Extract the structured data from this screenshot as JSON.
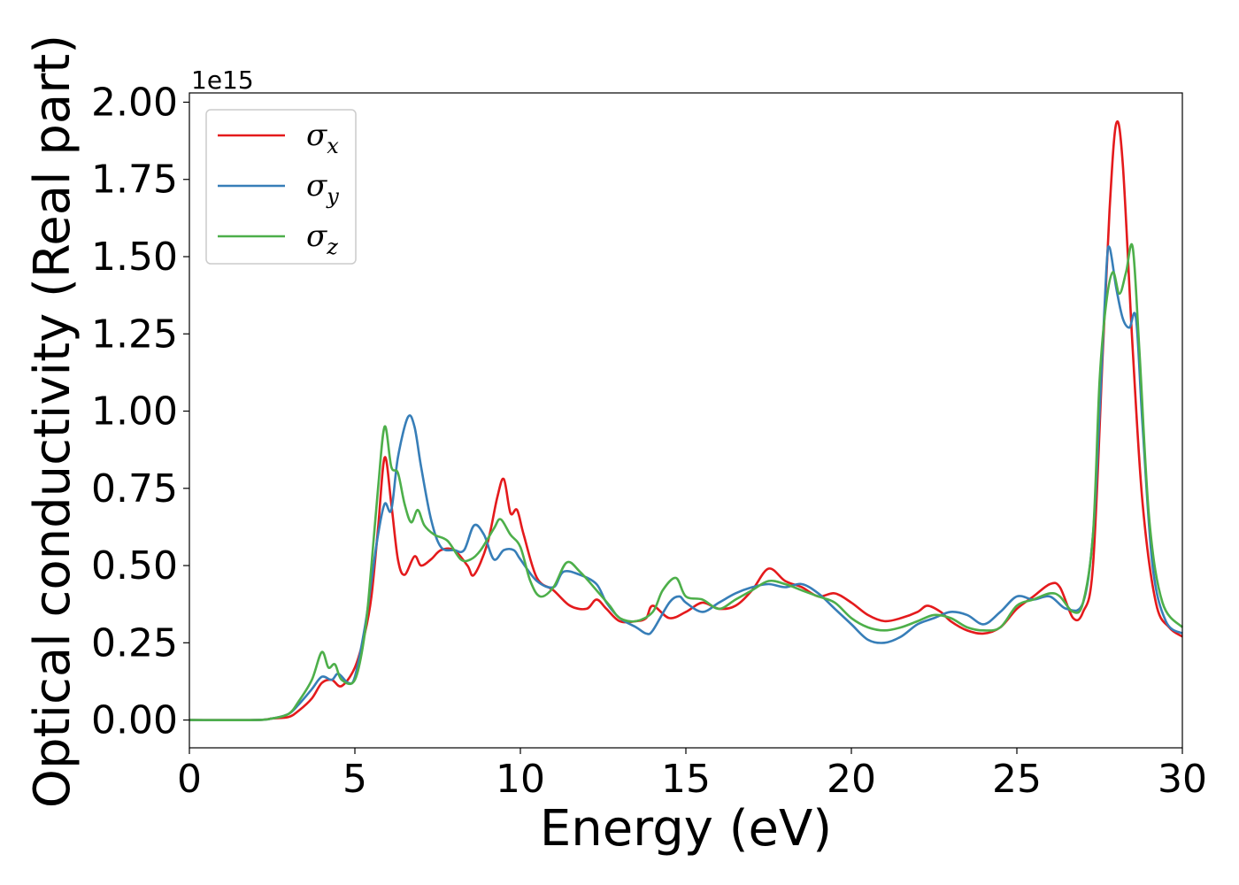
{
  "chart_data": {
    "type": "line",
    "xlabel": "Energy (eV)",
    "ylabel": "Optical conductivity (Real part)",
    "y_offset_label": "1e15",
    "xlim": [
      0,
      30
    ],
    "ylim": [
      -0.09,
      2.03
    ],
    "x_ticks": [
      0,
      5,
      10,
      15,
      20,
      25,
      30
    ],
    "x_tick_labels": [
      "0",
      "5",
      "10",
      "15",
      "20",
      "25",
      "30"
    ],
    "y_ticks": [
      0,
      0.25,
      0.5,
      0.75,
      1.0,
      1.25,
      1.5,
      1.75,
      2.0
    ],
    "y_tick_labels": [
      "0.00",
      "0.25",
      "0.50",
      "0.75",
      "1.00",
      "1.25",
      "1.50",
      "1.75",
      "2.00"
    ],
    "grid": false,
    "legend_position": "top-left",
    "series": [
      {
        "name": "σx",
        "legend_symbol": "σ",
        "legend_subscript": "x",
        "color": "#e41a1c",
        "points": [
          [
            0,
            0
          ],
          [
            2,
            0
          ],
          [
            2.5,
            0.005
          ],
          [
            3,
            0.01
          ],
          [
            3.3,
            0.03
          ],
          [
            3.7,
            0.07
          ],
          [
            4,
            0.12
          ],
          [
            4.3,
            0.13
          ],
          [
            4.6,
            0.11
          ],
          [
            5,
            0.17
          ],
          [
            5.3,
            0.28
          ],
          [
            5.5,
            0.4
          ],
          [
            5.7,
            0.62
          ],
          [
            5.9,
            0.85
          ],
          [
            6.1,
            0.7
          ],
          [
            6.3,
            0.52
          ],
          [
            6.5,
            0.47
          ],
          [
            6.8,
            0.53
          ],
          [
            7.0,
            0.5
          ],
          [
            7.3,
            0.52
          ],
          [
            7.6,
            0.55
          ],
          [
            8.0,
            0.55
          ],
          [
            8.4,
            0.5
          ],
          [
            8.6,
            0.47
          ],
          [
            9.0,
            0.57
          ],
          [
            9.3,
            0.72
          ],
          [
            9.5,
            0.78
          ],
          [
            9.7,
            0.67
          ],
          [
            9.9,
            0.68
          ],
          [
            10.1,
            0.6
          ],
          [
            10.5,
            0.46
          ],
          [
            11,
            0.42
          ],
          [
            11.5,
            0.37
          ],
          [
            12,
            0.36
          ],
          [
            12.3,
            0.39
          ],
          [
            12.6,
            0.36
          ],
          [
            13,
            0.32
          ],
          [
            13.5,
            0.32
          ],
          [
            13.8,
            0.33
          ],
          [
            14,
            0.37
          ],
          [
            14.5,
            0.33
          ],
          [
            15,
            0.35
          ],
          [
            15.5,
            0.38
          ],
          [
            16,
            0.36
          ],
          [
            16.5,
            0.37
          ],
          [
            17,
            0.42
          ],
          [
            17.5,
            0.49
          ],
          [
            18,
            0.45
          ],
          [
            18.5,
            0.43
          ],
          [
            19,
            0.4
          ],
          [
            19.5,
            0.41
          ],
          [
            20,
            0.38
          ],
          [
            20.5,
            0.34
          ],
          [
            21,
            0.32
          ],
          [
            21.5,
            0.33
          ],
          [
            22,
            0.35
          ],
          [
            22.3,
            0.37
          ],
          [
            22.7,
            0.35
          ],
          [
            23,
            0.32
          ],
          [
            23.5,
            0.29
          ],
          [
            24,
            0.28
          ],
          [
            24.5,
            0.3
          ],
          [
            25,
            0.36
          ],
          [
            25.5,
            0.4
          ],
          [
            26,
            0.44
          ],
          [
            26.3,
            0.43
          ],
          [
            26.7,
            0.33
          ],
          [
            27,
            0.35
          ],
          [
            27.3,
            0.5
          ],
          [
            27.6,
            1.2
          ],
          [
            27.8,
            1.65
          ],
          [
            28.0,
            1.93
          ],
          [
            28.2,
            1.8
          ],
          [
            28.5,
            1.2
          ],
          [
            28.8,
            0.7
          ],
          [
            29.2,
            0.38
          ],
          [
            29.6,
            0.3
          ],
          [
            30,
            0.27
          ]
        ]
      },
      {
        "name": "σy",
        "legend_symbol": "σ",
        "legend_subscript": "y",
        "color": "#377eb8",
        "points": [
          [
            0,
            0
          ],
          [
            2,
            0
          ],
          [
            2.5,
            0.005
          ],
          [
            3,
            0.02
          ],
          [
            3.3,
            0.05
          ],
          [
            3.7,
            0.1
          ],
          [
            4,
            0.14
          ],
          [
            4.3,
            0.13
          ],
          [
            4.5,
            0.15
          ],
          [
            4.8,
            0.12
          ],
          [
            5,
            0.14
          ],
          [
            5.3,
            0.3
          ],
          [
            5.5,
            0.45
          ],
          [
            5.7,
            0.6
          ],
          [
            5.9,
            0.7
          ],
          [
            6.1,
            0.68
          ],
          [
            6.3,
            0.85
          ],
          [
            6.6,
            0.98
          ],
          [
            6.8,
            0.95
          ],
          [
            7.0,
            0.82
          ],
          [
            7.3,
            0.65
          ],
          [
            7.6,
            0.56
          ],
          [
            8,
            0.55
          ],
          [
            8.3,
            0.55
          ],
          [
            8.6,
            0.63
          ],
          [
            8.9,
            0.6
          ],
          [
            9.2,
            0.52
          ],
          [
            9.5,
            0.55
          ],
          [
            9.8,
            0.55
          ],
          [
            10,
            0.52
          ],
          [
            10.5,
            0.45
          ],
          [
            11,
            0.43
          ],
          [
            11.3,
            0.48
          ],
          [
            11.8,
            0.47
          ],
          [
            12.3,
            0.44
          ],
          [
            12.6,
            0.38
          ],
          [
            13,
            0.33
          ],
          [
            13.5,
            0.3
          ],
          [
            13.8,
            0.28
          ],
          [
            14,
            0.29
          ],
          [
            14.5,
            0.38
          ],
          [
            14.8,
            0.4
          ],
          [
            15,
            0.38
          ],
          [
            15.5,
            0.35
          ],
          [
            16,
            0.38
          ],
          [
            16.5,
            0.41
          ],
          [
            17,
            0.43
          ],
          [
            17.5,
            0.44
          ],
          [
            18,
            0.43
          ],
          [
            18.5,
            0.44
          ],
          [
            19,
            0.41
          ],
          [
            19.5,
            0.36
          ],
          [
            20,
            0.31
          ],
          [
            20.5,
            0.26
          ],
          [
            21,
            0.25
          ],
          [
            21.5,
            0.27
          ],
          [
            22,
            0.31
          ],
          [
            22.5,
            0.33
          ],
          [
            23,
            0.35
          ],
          [
            23.5,
            0.34
          ],
          [
            24,
            0.31
          ],
          [
            24.5,
            0.35
          ],
          [
            25,
            0.4
          ],
          [
            25.5,
            0.39
          ],
          [
            26,
            0.4
          ],
          [
            26.5,
            0.36
          ],
          [
            27,
            0.38
          ],
          [
            27.3,
            0.6
          ],
          [
            27.5,
            1.0
          ],
          [
            27.7,
            1.45
          ],
          [
            27.8,
            1.53
          ],
          [
            28.0,
            1.4
          ],
          [
            28.2,
            1.3
          ],
          [
            28.4,
            1.27
          ],
          [
            28.6,
            1.3
          ],
          [
            28.8,
            0.95
          ],
          [
            29.1,
            0.5
          ],
          [
            29.5,
            0.32
          ],
          [
            30,
            0.28
          ]
        ]
      },
      {
        "name": "σz",
        "legend_symbol": "σ",
        "legend_subscript": "z",
        "color": "#4daf4a",
        "points": [
          [
            0,
            0
          ],
          [
            2,
            0
          ],
          [
            2.5,
            0.005
          ],
          [
            3,
            0.02
          ],
          [
            3.3,
            0.06
          ],
          [
            3.7,
            0.13
          ],
          [
            4,
            0.22
          ],
          [
            4.2,
            0.17
          ],
          [
            4.4,
            0.18
          ],
          [
            4.6,
            0.13
          ],
          [
            5,
            0.13
          ],
          [
            5.3,
            0.28
          ],
          [
            5.5,
            0.5
          ],
          [
            5.7,
            0.75
          ],
          [
            5.9,
            0.95
          ],
          [
            6.1,
            0.82
          ],
          [
            6.3,
            0.8
          ],
          [
            6.5,
            0.7
          ],
          [
            6.7,
            0.64
          ],
          [
            6.9,
            0.68
          ],
          [
            7.1,
            0.63
          ],
          [
            7.4,
            0.6
          ],
          [
            7.8,
            0.58
          ],
          [
            8.2,
            0.52
          ],
          [
            8.5,
            0.52
          ],
          [
            8.8,
            0.55
          ],
          [
            9.2,
            0.62
          ],
          [
            9.4,
            0.65
          ],
          [
            9.7,
            0.6
          ],
          [
            10,
            0.56
          ],
          [
            10.3,
            0.45
          ],
          [
            10.6,
            0.4
          ],
          [
            11,
            0.43
          ],
          [
            11.4,
            0.51
          ],
          [
            11.8,
            0.48
          ],
          [
            12.3,
            0.42
          ],
          [
            12.7,
            0.37
          ],
          [
            13,
            0.33
          ],
          [
            13.5,
            0.32
          ],
          [
            14,
            0.35
          ],
          [
            14.3,
            0.42
          ],
          [
            14.7,
            0.46
          ],
          [
            15,
            0.4
          ],
          [
            15.5,
            0.39
          ],
          [
            16,
            0.36
          ],
          [
            16.5,
            0.39
          ],
          [
            17,
            0.42
          ],
          [
            17.5,
            0.45
          ],
          [
            18,
            0.44
          ],
          [
            18.5,
            0.42
          ],
          [
            19,
            0.4
          ],
          [
            19.5,
            0.38
          ],
          [
            20,
            0.33
          ],
          [
            20.5,
            0.3
          ],
          [
            21,
            0.29
          ],
          [
            21.5,
            0.3
          ],
          [
            22,
            0.32
          ],
          [
            22.5,
            0.34
          ],
          [
            23,
            0.33
          ],
          [
            23.5,
            0.3
          ],
          [
            24,
            0.29
          ],
          [
            24.5,
            0.3
          ],
          [
            25,
            0.37
          ],
          [
            25.5,
            0.39
          ],
          [
            26,
            0.41
          ],
          [
            26.3,
            0.4
          ],
          [
            26.7,
            0.35
          ],
          [
            27,
            0.38
          ],
          [
            27.3,
            0.6
          ],
          [
            27.5,
            1.1
          ],
          [
            27.7,
            1.35
          ],
          [
            27.9,
            1.45
          ],
          [
            28.1,
            1.38
          ],
          [
            28.3,
            1.45
          ],
          [
            28.5,
            1.53
          ],
          [
            28.7,
            1.2
          ],
          [
            29,
            0.65
          ],
          [
            29.4,
            0.38
          ],
          [
            30,
            0.3
          ]
        ]
      }
    ]
  }
}
